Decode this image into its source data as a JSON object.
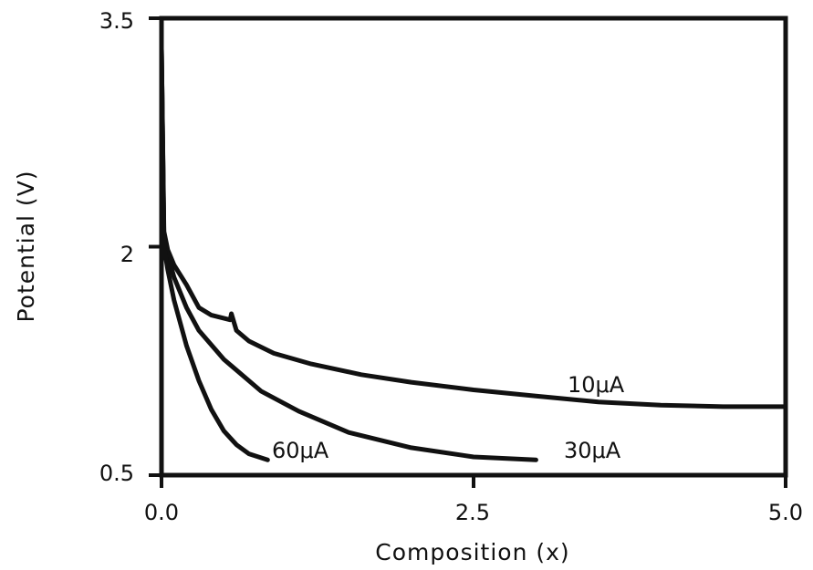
{
  "chart_data": {
    "type": "line",
    "xlabel": "Composition (x)",
    "ylabel": "Potential (V)",
    "xlim": [
      0.0,
      5.0
    ],
    "ylim": [
      0.5,
      3.5
    ],
    "x_ticks": [
      "0.0",
      "2.5",
      "5.0"
    ],
    "y_ticks": [
      "0.5",
      "2",
      "3.5"
    ],
    "x_tick_values": [
      0.0,
      2.5,
      5.0
    ],
    "y_tick_values": [
      0.5,
      2.0,
      3.5
    ],
    "grid": false,
    "legend": "none",
    "series": [
      {
        "name": "10μA",
        "points": [
          [
            0.0,
            3.3
          ],
          [
            0.02,
            2.1
          ],
          [
            0.05,
            1.98
          ],
          [
            0.1,
            1.88
          ],
          [
            0.2,
            1.75
          ],
          [
            0.3,
            1.6
          ],
          [
            0.4,
            1.55
          ],
          [
            0.55,
            1.52
          ],
          [
            0.56,
            1.56
          ],
          [
            0.6,
            1.45
          ],
          [
            0.7,
            1.38
          ],
          [
            0.9,
            1.3
          ],
          [
            1.2,
            1.23
          ],
          [
            1.6,
            1.16
          ],
          [
            2.0,
            1.11
          ],
          [
            2.5,
            1.06
          ],
          [
            3.0,
            1.02
          ],
          [
            3.5,
            0.98
          ],
          [
            4.0,
            0.96
          ],
          [
            4.5,
            0.95
          ],
          [
            5.0,
            0.95
          ]
        ]
      },
      {
        "name": "30μA",
        "points": [
          [
            0.0,
            3.3
          ],
          [
            0.02,
            2.05
          ],
          [
            0.05,
            1.95
          ],
          [
            0.1,
            1.8
          ],
          [
            0.2,
            1.6
          ],
          [
            0.3,
            1.45
          ],
          [
            0.5,
            1.26
          ],
          [
            0.8,
            1.05
          ],
          [
            1.1,
            0.92
          ],
          [
            1.5,
            0.78
          ],
          [
            2.0,
            0.68
          ],
          [
            2.5,
            0.62
          ],
          [
            3.0,
            0.6
          ]
        ]
      },
      {
        "name": "60μA",
        "points": [
          [
            0.0,
            3.3
          ],
          [
            0.02,
            2.0
          ],
          [
            0.05,
            1.85
          ],
          [
            0.1,
            1.65
          ],
          [
            0.2,
            1.35
          ],
          [
            0.3,
            1.12
          ],
          [
            0.4,
            0.93
          ],
          [
            0.5,
            0.79
          ],
          [
            0.6,
            0.7
          ],
          [
            0.7,
            0.64
          ],
          [
            0.85,
            0.6
          ]
        ]
      }
    ]
  }
}
